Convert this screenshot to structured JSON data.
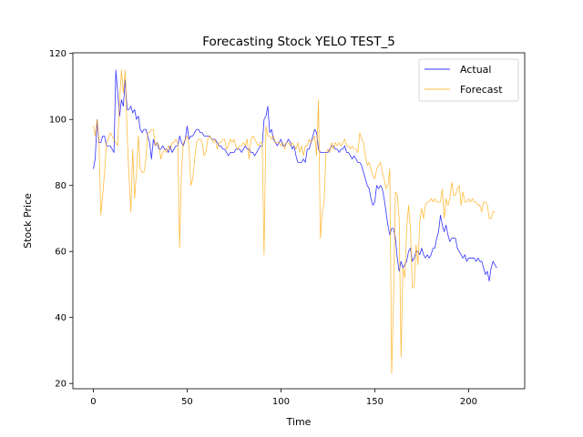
{
  "chart_data": {
    "type": "line",
    "title": "Forecasting Stock YELO TEST_5",
    "xlabel": "Time",
    "ylabel": "Stock Price",
    "xlim": [
      -10.9,
      229.9
    ],
    "ylim": [
      18.4,
      120.2
    ],
    "xticks": [
      0,
      50,
      100,
      150,
      200
    ],
    "yticks": [
      20,
      40,
      60,
      80,
      100,
      120
    ],
    "grid": false,
    "legend_position": "top-right",
    "series": [
      {
        "name": "Actual",
        "color": "#0000ff",
        "values": [
          85,
          88,
          100,
          93,
          93,
          95,
          95,
          92,
          92,
          92,
          91,
          90,
          115,
          108,
          101,
          106,
          104,
          112,
          103,
          103,
          104,
          102,
          103,
          100,
          101,
          97,
          96,
          97,
          97,
          95,
          93,
          88,
          94,
          92,
          93,
          91,
          91,
          92,
          91,
          91,
          90,
          92,
          90,
          91,
          92,
          92,
          95,
          93,
          92,
          94,
          98,
          94,
          95,
          95,
          96,
          97,
          97,
          96,
          96,
          95,
          95,
          95,
          95,
          94,
          94,
          94,
          93,
          92,
          92,
          91,
          91,
          90,
          89,
          90,
          90,
          90,
          91,
          91,
          91,
          90,
          91,
          92,
          91,
          91,
          90,
          90,
          89,
          90,
          91,
          92,
          92,
          100,
          101,
          104,
          96,
          97,
          94,
          93,
          92,
          93,
          94,
          92,
          92,
          93,
          94,
          93,
          91,
          92,
          89,
          87,
          87,
          87,
          88,
          87,
          91,
          91,
          93,
          95,
          97,
          96,
          91,
          90,
          90,
          90,
          90,
          90,
          91,
          92,
          92,
          91,
          91,
          90,
          91,
          91,
          92,
          90,
          90,
          89,
          88,
          89,
          88,
          87,
          87,
          86,
          84,
          82,
          80,
          79,
          76,
          74,
          75,
          80,
          79,
          80,
          79,
          76,
          72,
          68,
          65,
          67,
          67,
          64,
          58,
          54,
          57,
          55,
          56,
          57,
          60,
          61,
          57,
          58,
          60,
          60,
          59,
          61,
          59,
          58,
          59,
          58,
          59,
          61,
          61,
          64,
          66,
          71,
          68,
          66,
          68,
          65,
          63,
          64,
          64,
          64,
          61,
          60,
          59,
          58,
          59,
          57,
          58,
          58,
          58,
          58,
          57,
          58,
          57,
          57,
          55,
          53,
          54,
          51,
          55,
          57,
          56,
          55
        ]
      },
      {
        "name": "Forecast",
        "color": "#ffa500",
        "values": [
          98,
          95,
          100,
          94,
          71,
          77,
          84,
          93,
          94,
          96,
          95,
          94,
          93,
          92,
          106,
          115,
          108,
          115,
          96,
          83,
          72,
          91,
          76,
          84,
          95,
          85,
          84,
          84,
          88,
          96,
          96,
          97,
          97,
          92,
          93,
          92,
          88,
          90,
          91,
          90,
          92,
          91,
          93,
          93,
          94,
          93,
          61,
          85,
          93,
          94,
          95,
          92,
          80,
          82,
          88,
          93,
          94,
          94,
          93,
          89,
          90,
          94,
          95,
          94,
          93,
          94,
          91,
          93,
          93,
          94,
          94,
          91,
          92,
          94,
          93,
          94,
          92,
          91,
          92,
          92,
          93,
          92,
          94,
          88,
          94,
          95,
          94,
          93,
          92,
          93,
          93,
          59,
          98,
          95,
          95,
          94,
          95,
          93,
          93,
          93,
          92,
          93,
          91,
          93,
          93,
          92,
          93,
          92,
          91,
          93,
          90,
          92,
          89,
          92,
          92,
          94,
          93,
          94,
          95,
          89,
          106,
          64,
          72,
          75,
          90,
          91,
          90,
          93,
          91,
          93,
          92,
          93,
          92,
          93,
          94,
          92,
          92,
          91,
          92,
          91,
          91,
          90,
          96,
          94,
          93,
          89,
          86,
          87,
          85,
          83,
          82,
          85,
          86,
          87,
          84,
          82,
          79,
          80,
          85,
          23,
          45,
          78,
          77,
          70,
          28,
          55,
          52,
          67,
          74,
          67,
          49,
          49,
          62,
          56,
          69,
          73,
          70,
          74,
          75,
          75,
          76,
          75,
          76,
          75,
          75,
          75,
          79,
          70,
          76,
          74,
          76,
          81,
          77,
          77,
          79,
          80,
          74,
          78,
          75,
          75,
          76,
          75,
          76,
          75,
          75,
          74,
          74,
          72,
          75,
          75,
          74,
          70,
          70,
          72,
          72
        ]
      }
    ]
  }
}
